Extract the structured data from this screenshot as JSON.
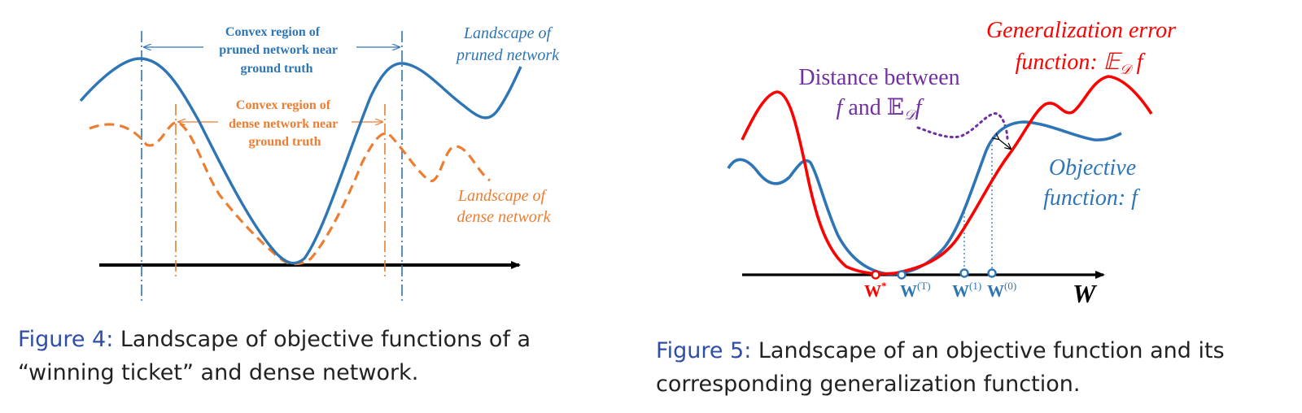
{
  "figure4": {
    "pruned_region_label": [
      "Convex region of",
      "pruned network near",
      "ground truth"
    ],
    "dense_region_label": [
      "Convex region of",
      "dense network near",
      "ground truth"
    ],
    "pruned_landscape_label": [
      "Landscape of",
      "pruned network"
    ],
    "dense_landscape_label": [
      "Landscape of",
      "dense network"
    ],
    "caption_prefix": "Figure 4:",
    "caption_line1": " Landscape of objective functions of a",
    "caption_line2": "“winning ticket” and dense network."
  },
  "figure5": {
    "generalization_label": [
      "Generalization error",
      "function: 𝔼",
      "𝒟",
      " f"
    ],
    "distance_label": [
      "Distance between",
      "f",
      " and ",
      "𝔼",
      "𝒟",
      "f"
    ],
    "objective_label": [
      "Objective",
      "function: f"
    ],
    "axis_label": "W",
    "w_star": "W",
    "w_star_sup": "*",
    "w_T": "W",
    "w_T_sup": "(T)",
    "w_1": "W",
    "w_1_sup": "(1)",
    "w_0": "W",
    "w_0_sup": "(0)",
    "caption_prefix": "Figure 5:",
    "caption_line1": " Landscape of an objective function and its",
    "caption_line2": "corresponding generalization function."
  },
  "colors": {
    "pruned_blue": "#2e75b6",
    "dense_orange": "#ed7d31",
    "red": "#ff0000",
    "purple": "#7030a0",
    "axis_black": "#000000",
    "caption_blue": "#2e4ea8",
    "caption_text": "#222222"
  }
}
